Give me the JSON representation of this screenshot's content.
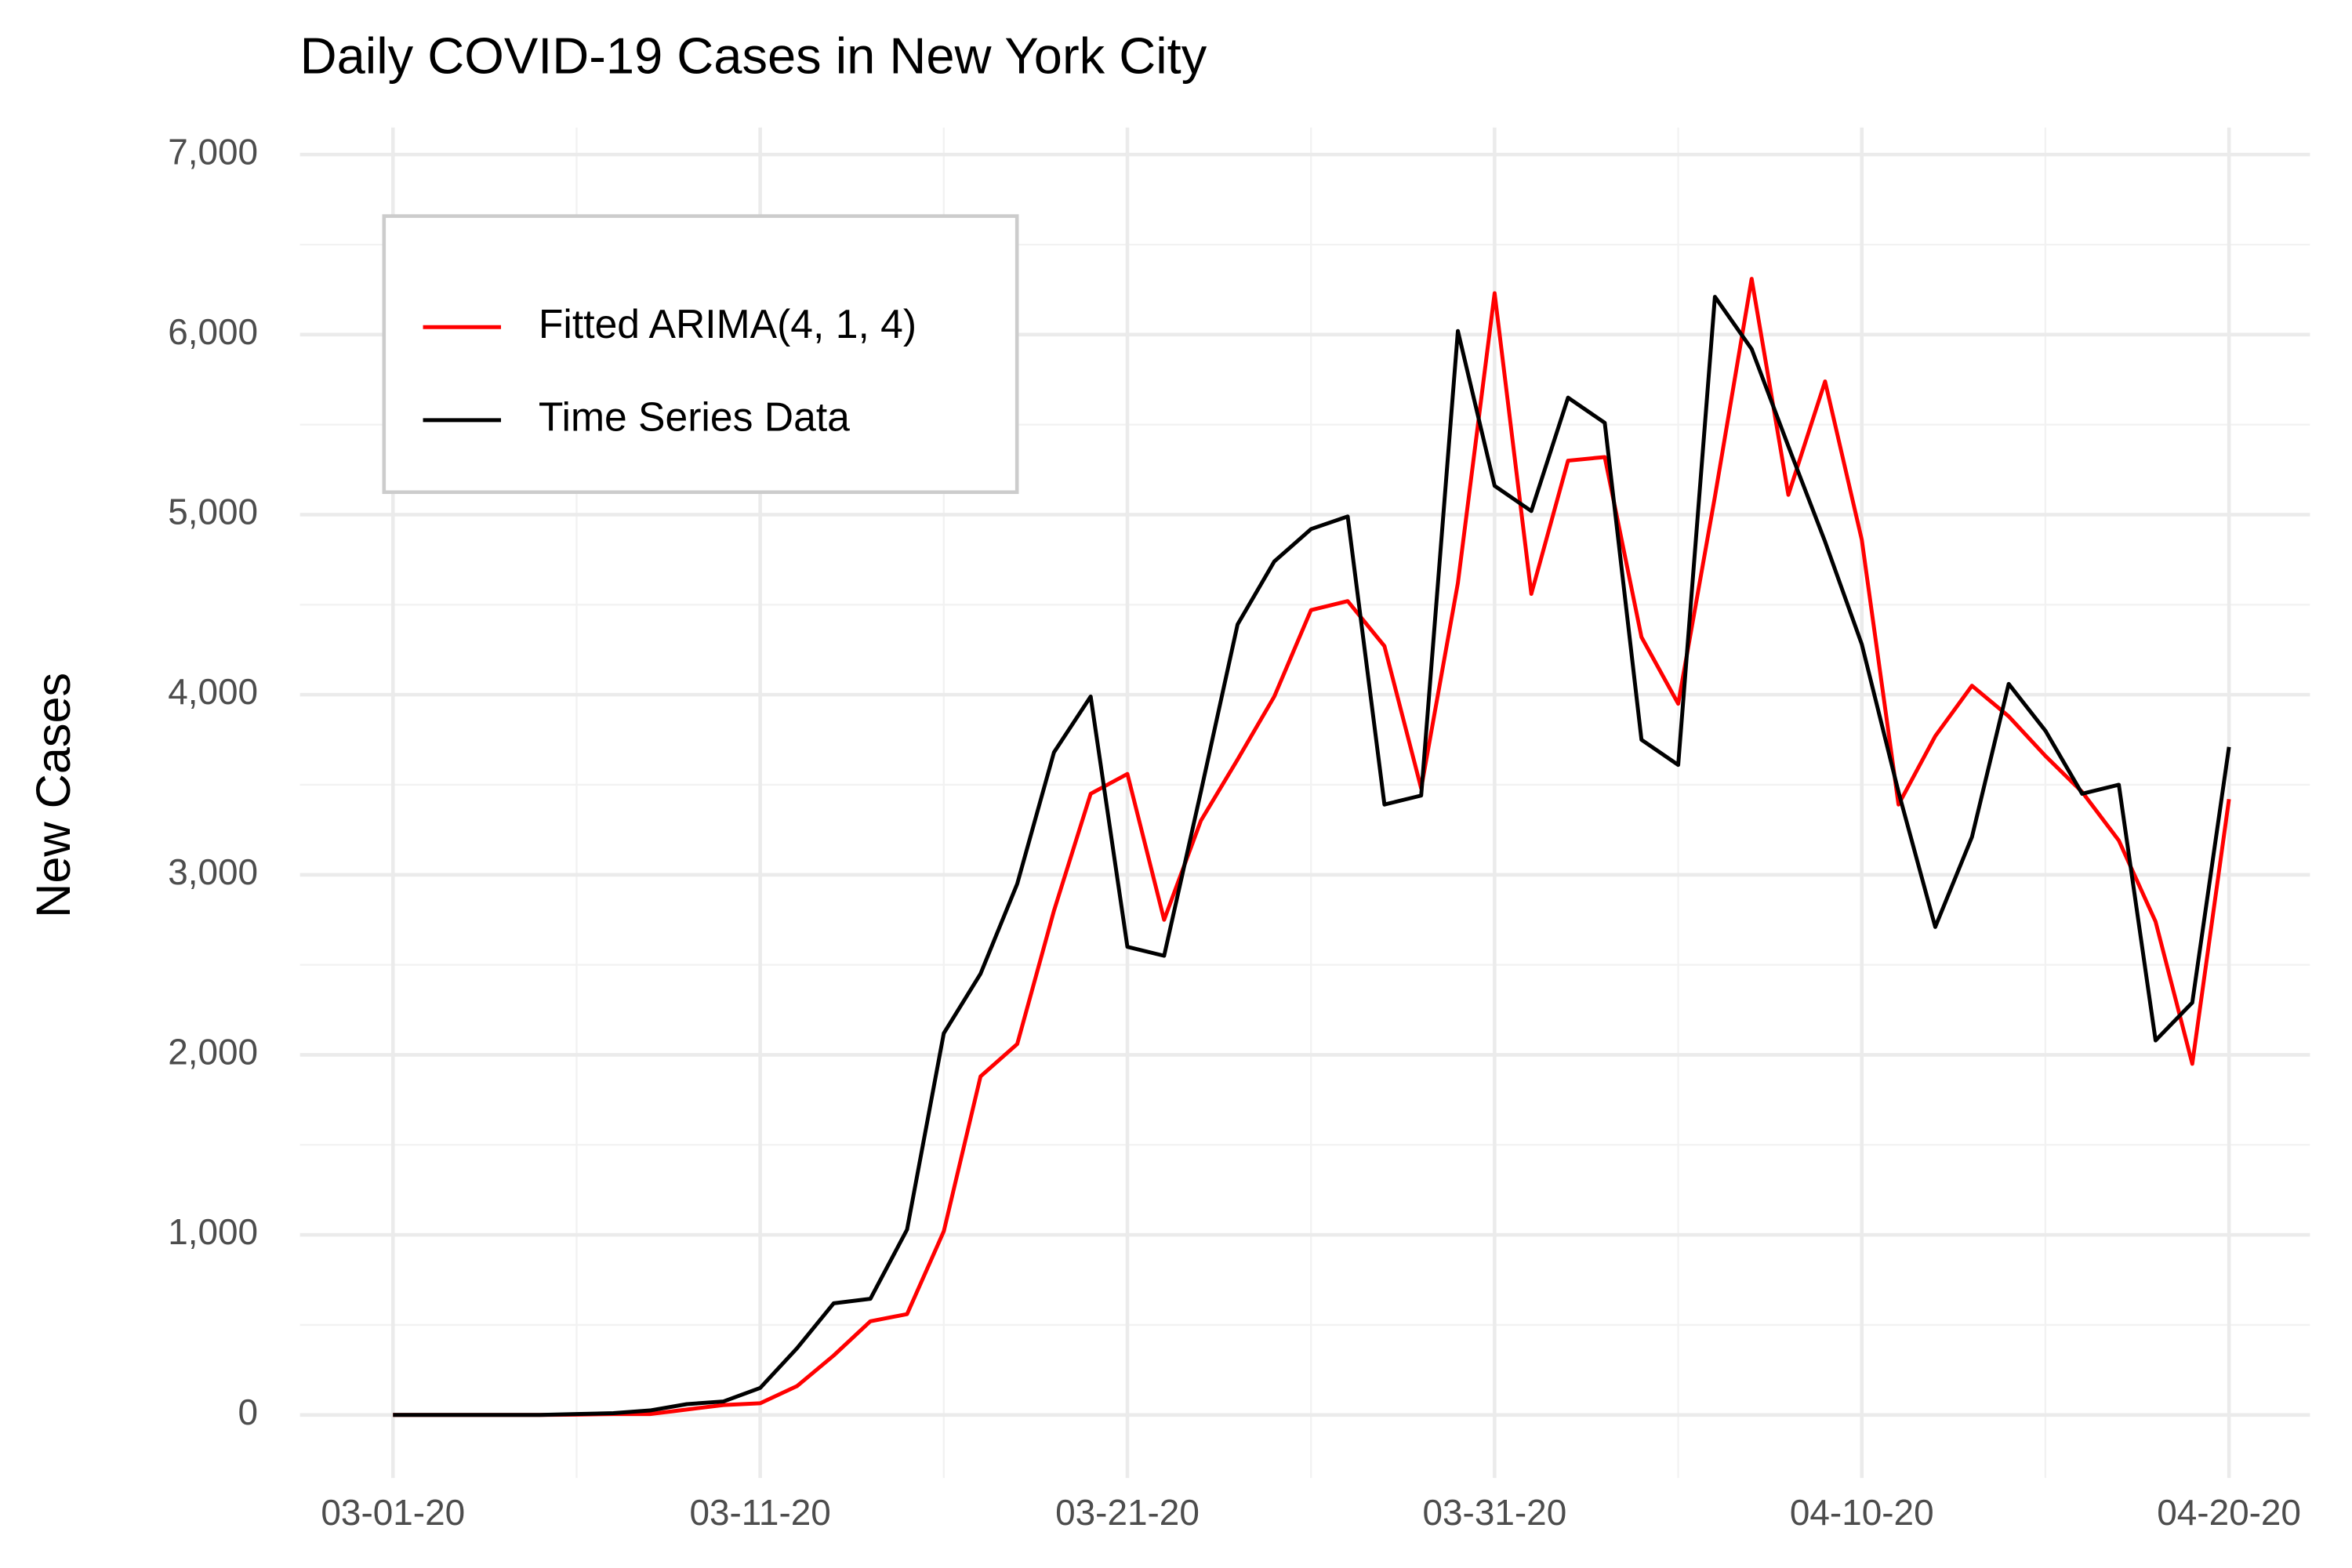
{
  "chart_data": {
    "type": "line",
    "title": "Daily COVID-19 Cases in New York City",
    "y_label": "New Cases",
    "x": [
      "03-01-20",
      "03-02-20",
      "03-03-20",
      "03-04-20",
      "03-05-20",
      "03-06-20",
      "03-07-20",
      "03-08-20",
      "03-09-20",
      "03-10-20",
      "03-11-20",
      "03-12-20",
      "03-13-20",
      "03-14-20",
      "03-15-20",
      "03-16-20",
      "03-17-20",
      "03-18-20",
      "03-19-20",
      "03-20-20",
      "03-21-20",
      "03-22-20",
      "03-23-20",
      "03-24-20",
      "03-25-20",
      "03-26-20",
      "03-27-20",
      "03-28-20",
      "03-29-20",
      "03-30-20",
      "03-31-20",
      "04-01-20",
      "04-02-20",
      "04-03-20",
      "04-04-20",
      "04-05-20",
      "04-06-20",
      "04-07-20",
      "04-08-20",
      "04-09-20",
      "04-10-20",
      "04-11-20",
      "04-12-20",
      "04-13-20",
      "04-14-20",
      "04-15-20",
      "04-16-20",
      "04-17-20",
      "04-18-20",
      "04-19-20",
      "04-20-20"
    ],
    "series": [
      {
        "name": "Fitted ARIMA(4, 1, 4)",
        "color": "#ff0000",
        "values": [
          0,
          0,
          0,
          0,
          0,
          2,
          5,
          5,
          30,
          55,
          65,
          160,
          330,
          520,
          560,
          1020,
          1880,
          2060,
          2800,
          3450,
          3560,
          2750,
          3300,
          3640,
          3990,
          4470,
          4520,
          4270,
          3480,
          4620,
          6230,
          4560,
          5300,
          5320,
          4320,
          3950,
          5100,
          6310,
          5110,
          5740,
          4860,
          3390,
          3770,
          4050,
          3880,
          3660,
          3460,
          3190,
          2740,
          1950,
          3420
        ]
      },
      {
        "name": "Time Series Data",
        "color": "#000000",
        "values": [
          0,
          0,
          0,
          0,
          0,
          5,
          10,
          25,
          60,
          75,
          150,
          370,
          620,
          645,
          1030,
          2120,
          2450,
          2950,
          3680,
          3990,
          2600,
          2550,
          3460,
          4390,
          4740,
          4920,
          4990,
          3390,
          3440,
          6020,
          5160,
          5020,
          5650,
          5510,
          3750,
          3610,
          6210,
          5920,
          5380,
          4850,
          4280,
          3460,
          2710,
          3210,
          4060,
          3800,
          3450,
          3500,
          2080,
          2290,
          3710
        ]
      }
    ],
    "ylim": [
      -350,
      7150
    ],
    "yticks": [
      {
        "value": 0,
        "label": "0"
      },
      {
        "value": 1000,
        "label": "1,000"
      },
      {
        "value": 2000,
        "label": "2,000"
      },
      {
        "value": 3000,
        "label": "3,000"
      },
      {
        "value": 4000,
        "label": "4,000"
      },
      {
        "value": 5000,
        "label": "5,000"
      },
      {
        "value": 6000,
        "label": "6,000"
      },
      {
        "value": 7000,
        "label": "7,000"
      }
    ],
    "xticks": [
      "03-01-20",
      "03-11-20",
      "03-21-20",
      "03-31-20",
      "04-10-20",
      "04-20-20"
    ],
    "grid": true,
    "legend_position": "top-left"
  }
}
